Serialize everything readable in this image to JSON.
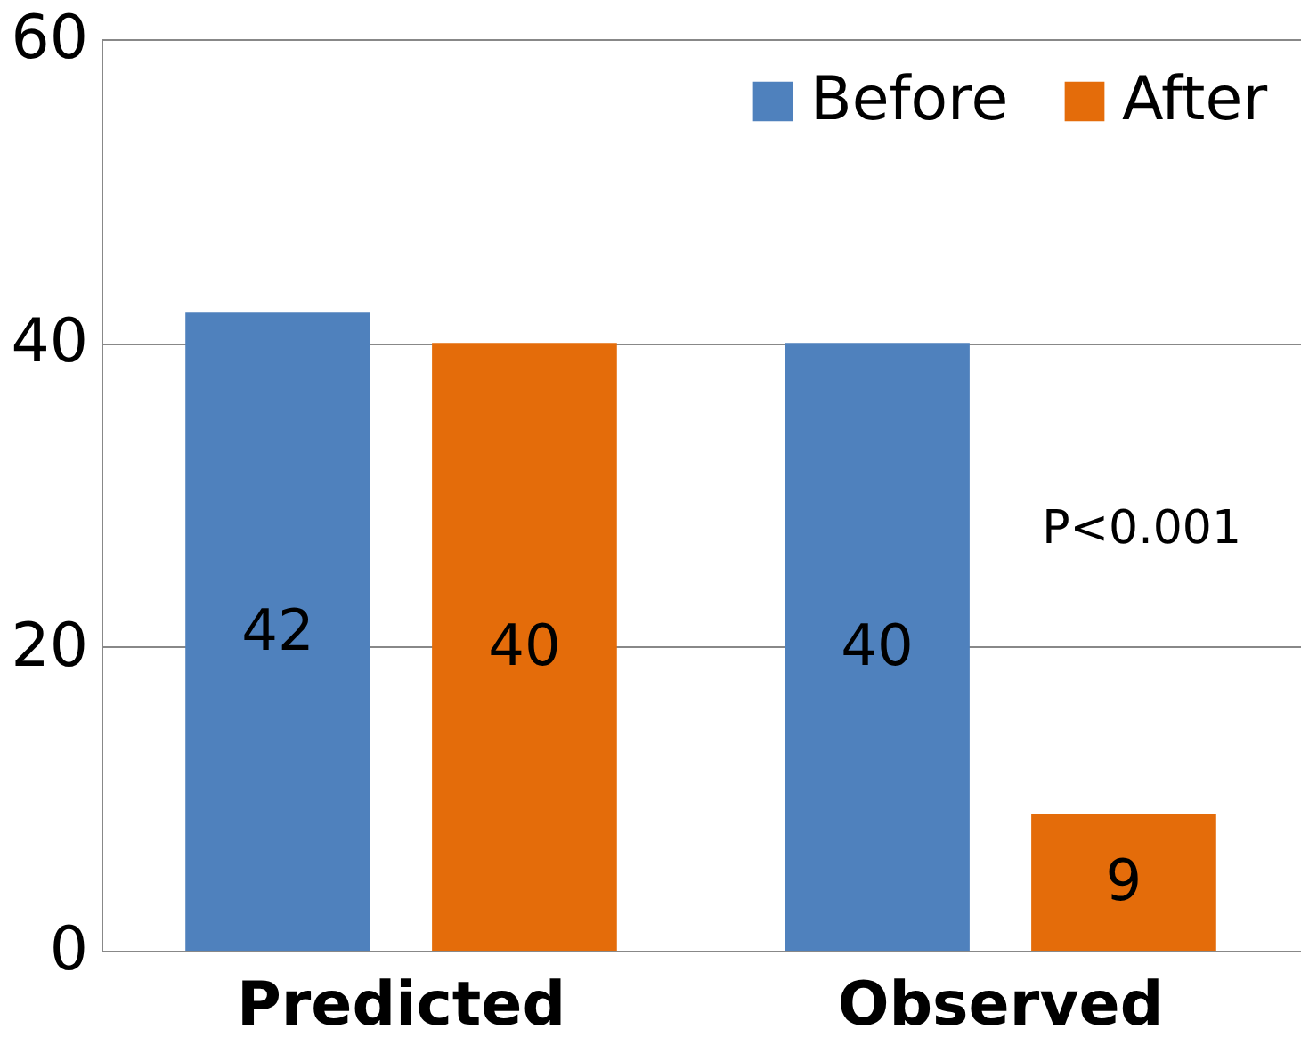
{
  "chart_data": {
    "type": "bar",
    "categories": [
      "Predicted",
      "Observed"
    ],
    "series": [
      {
        "name": "Before",
        "color": "#4f81bd",
        "values": [
          42,
          40
        ]
      },
      {
        "name": "After",
        "color": "#e46c0a",
        "values": [
          40,
          9
        ]
      }
    ],
    "ylim": [
      0,
      60
    ],
    "yticks": [
      0,
      20,
      40,
      60
    ],
    "grid": "y",
    "legend": "top right",
    "data_labels": true,
    "annotations": [
      "P<0.001"
    ]
  }
}
